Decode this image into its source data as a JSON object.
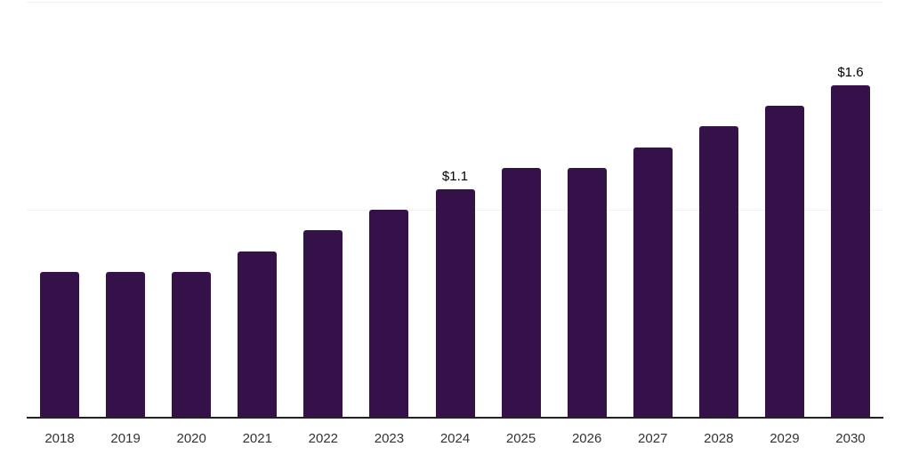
{
  "chart_data": {
    "type": "bar",
    "title": "",
    "xlabel": "",
    "ylabel": "",
    "categories": [
      "2018",
      "2019",
      "2020",
      "2021",
      "2022",
      "2023",
      "2024",
      "2025",
      "2026",
      "2027",
      "2028",
      "2029",
      "2030"
    ],
    "values": [
      0.7,
      0.7,
      0.7,
      0.8,
      0.9,
      1.0,
      1.1,
      1.2,
      1.2,
      1.3,
      1.4,
      1.5,
      1.6
    ],
    "bar_labels": [
      "",
      "",
      "",
      "",
      "",
      "",
      "$1.1",
      "",
      "",
      "",
      "",
      "",
      "$1.6"
    ],
    "ylim": [
      0,
      2.0
    ],
    "gridline_values": [
      1.0,
      2.0
    ],
    "grid": "horizontal",
    "legend": "none",
    "colors": {
      "bar": "#341249",
      "axis_line": "#222222",
      "gridline": "#f2f2f2",
      "tick_label": "#333333",
      "value_label": "#000000",
      "background": "#ffffff"
    }
  }
}
